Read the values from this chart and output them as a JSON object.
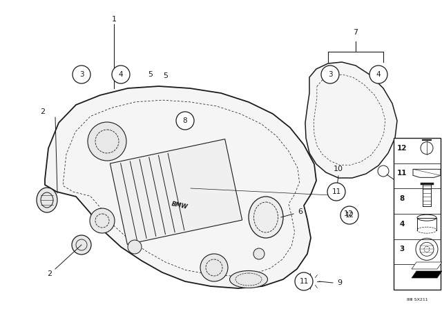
{
  "bg_color": "#ffffff",
  "line_color": "#1a1a1a",
  "fig_w": 6.4,
  "fig_h": 4.48,
  "dpi": 100
}
